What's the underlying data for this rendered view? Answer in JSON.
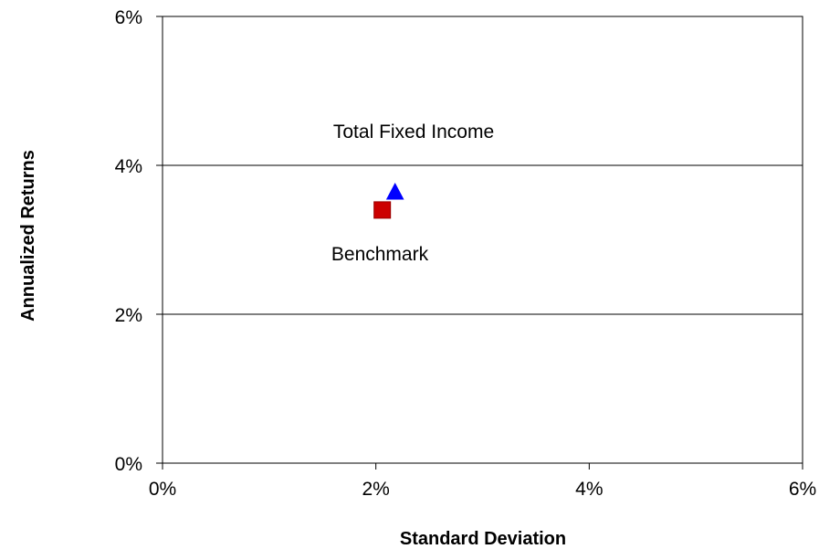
{
  "chart_data": {
    "type": "scatter",
    "title": "",
    "xlabel": "Standard Deviation",
    "ylabel": "Annualized Returns",
    "xlim": [
      0,
      6
    ],
    "ylim": [
      0,
      6
    ],
    "x_ticks": [
      0,
      2,
      4,
      6
    ],
    "y_ticks": [
      0,
      2,
      4,
      6
    ],
    "x_tick_labels": [
      "0%",
      "2%",
      "4%",
      "6%"
    ],
    "y_tick_labels": [
      "0%",
      "2%",
      "4%",
      "6%"
    ],
    "grid": "horizontal",
    "legend": "none",
    "series": [
      {
        "name": "Total Fixed Income",
        "marker": "triangle",
        "color": "#0000ff",
        "x": [
          2.18
        ],
        "y": [
          3.65
        ]
      },
      {
        "name": "Benchmark",
        "marker": "square",
        "color": "#cc0000",
        "x": [
          2.06
        ],
        "y": [
          3.4
        ]
      }
    ]
  }
}
